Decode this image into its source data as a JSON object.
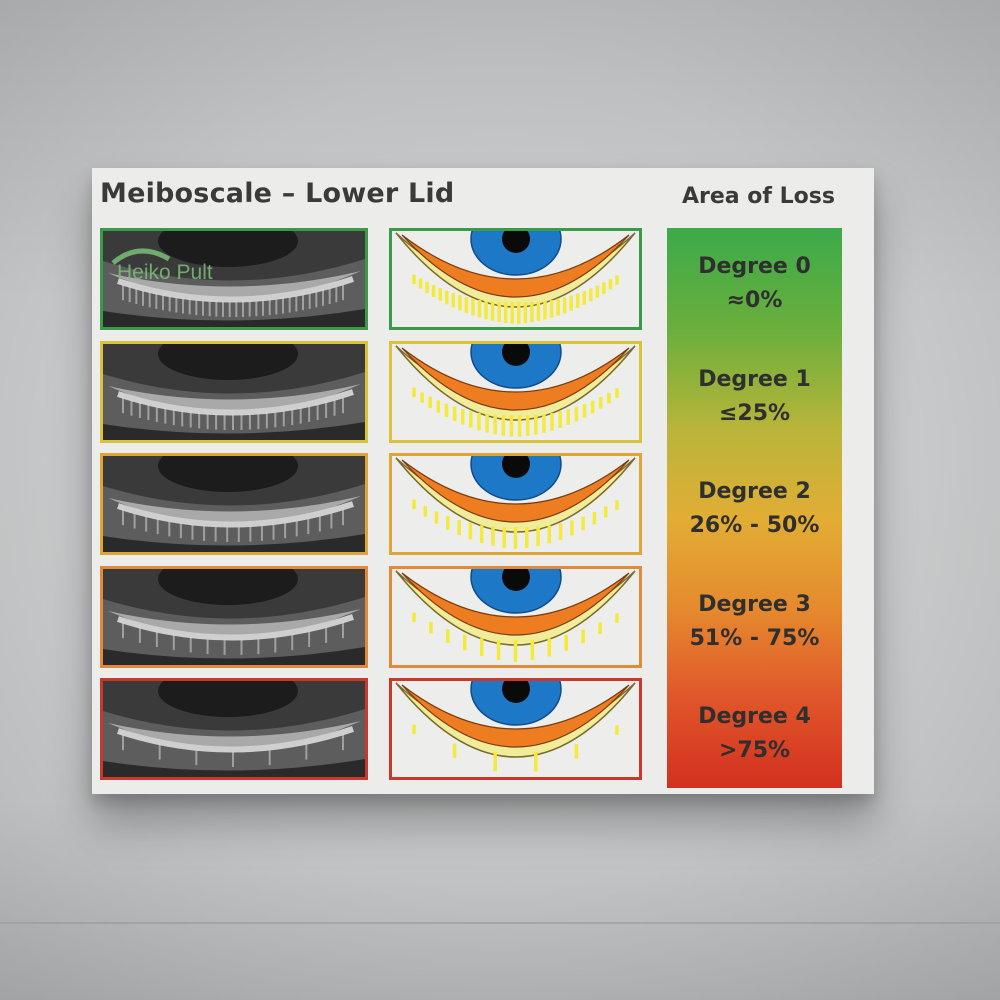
{
  "title": "Meiboscale – Lower Lid",
  "loss_header": "Area of Loss",
  "watermark": "Heiko Pult",
  "grades": [
    {
      "degree": "Degree 0",
      "loss": "≈0%",
      "color": "#3a9a48",
      "gland_density": 1.0
    },
    {
      "degree": "Degree 1",
      "loss": "≤25%",
      "color": "#d8c33a",
      "gland_density": 0.8
    },
    {
      "degree": "Degree 2",
      "loss": "26% - 50%",
      "color": "#e0a537",
      "gland_density": 0.6
    },
    {
      "degree": "Degree 3",
      "loss": "51% - 75%",
      "color": "#e08a3a",
      "gland_density": 0.4
    },
    {
      "degree": "Degree 4",
      "loss": ">75%",
      "color": "#c9392b",
      "gland_density": 0.2
    }
  ]
}
